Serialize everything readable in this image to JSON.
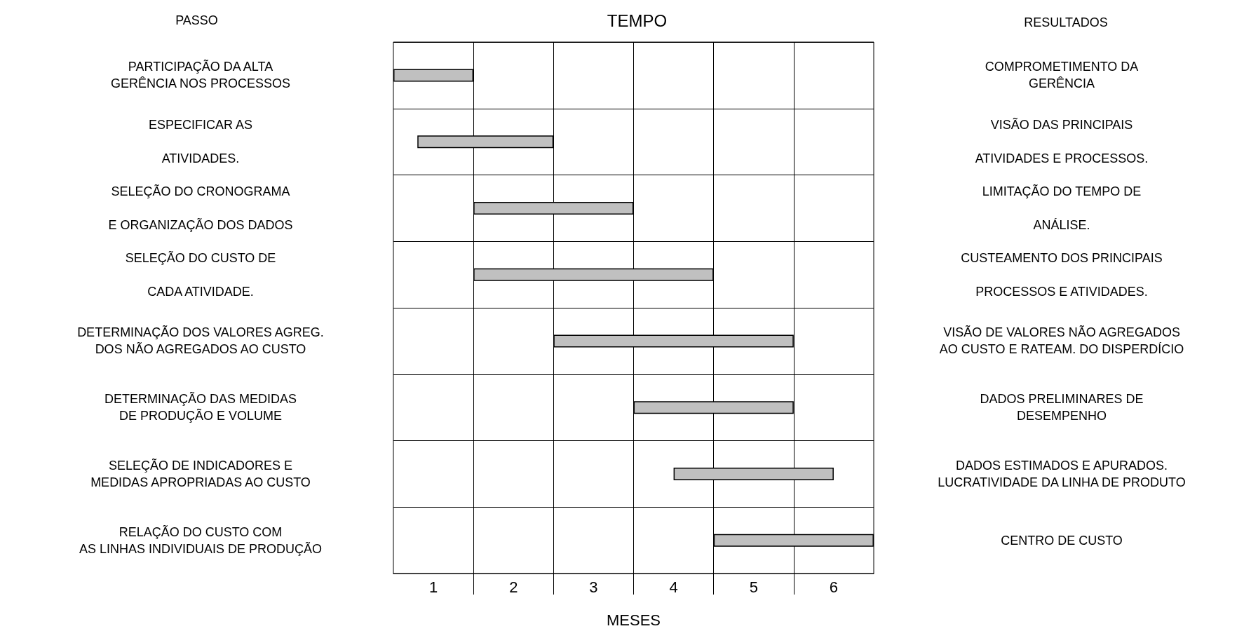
{
  "chart_data": {
    "type": "bar",
    "orientation": "horizontal",
    "title": "TEMPO",
    "ylabel": "PASSO",
    "annotations": [
      "RESULTADOS"
    ],
    "xlabel": "MESES",
    "categories": [
      "PARTICIPAÇÃO DA ALTA\nGERÊNCIA NOS PROCESSOS",
      "ESPECIFICAR AS\n\nATIVIDADES.",
      "SELEÇÃO DO CRONOGRAMA\n\nE ORGANIZAÇÃO DOS DADOS",
      "SELEÇÃO DO CUSTO DE\n\nCADA ATIVIDADE.",
      "DETERMINAÇÃO DOS VALORES AGREG.\nDOS NÃO AGREGADOS AO CUSTO",
      "DETERMINAÇÃO DAS MEDIDAS\nDE PRODUÇÃO E VOLUME",
      "SELEÇÃO DE INDICADORES E\nMEDIDAS APROPRIADAS AO CUSTO",
      "RELAÇÃO DO CUSTO COM\nAS LINHAS INDIVIDUAIS DE PRODUÇÃO"
    ],
    "y2_categories": [
      "COMPROMETIMENTO DA\nGERÊNCIA",
      "VISÃO DAS PRINCIPAIS\n\nATIVIDADES E PROCESSOS.",
      "LIMITAÇÃO DO TEMPO DE\n\nANÁLISE.",
      "CUSTEAMENTO DOS PRINCIPAIS\n\nPROCESSOS E ATIVIDADES.",
      "VISÃO DE VALORES NÃO AGREGADOS\nAO CUSTO E RATEAM. DO DISPERDÍCIO",
      "DADOS PRELIMINARES DE\nDESEMPENHO",
      "DADOS ESTIMADOS E APURADOS.\nLUCRATIVIDADE DA LINHA DE PRODUTO",
      "CENTRO DE CUSTO"
    ],
    "base": [
      0,
      0.3,
      1,
      1,
      2,
      3,
      3.5,
      4
    ],
    "values": [
      1,
      1.7,
      2,
      3,
      3,
      2,
      2,
      2
    ],
    "color": "#c0c0c0",
    "xlim": [
      0,
      6
    ],
    "xticks": [
      {
        "value": 0.5,
        "label": "1"
      },
      {
        "value": 1,
        "label": null
      },
      {
        "value": 1.5,
        "label": "2"
      },
      {
        "value": 2,
        "label": null
      },
      {
        "value": 2.5,
        "label": "3"
      },
      {
        "value": 3,
        "label": null
      },
      {
        "value": 3.5,
        "label": "4"
      },
      {
        "value": 4,
        "label": null
      },
      {
        "value": 4.5,
        "label": "5"
      },
      {
        "value": 5,
        "label": null
      },
      {
        "value": 5.5,
        "label": "6"
      }
    ],
    "grid": true
  }
}
